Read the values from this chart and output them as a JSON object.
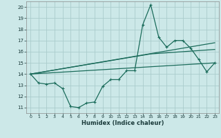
{
  "xlabel": "Humidex (Indice chaleur)",
  "background_color": "#cce8e8",
  "grid_color": "#aacccc",
  "line_color": "#1a6b5a",
  "xlim": [
    -0.5,
    23.5
  ],
  "ylim": [
    10.5,
    20.5
  ],
  "xticks": [
    0,
    1,
    2,
    3,
    4,
    5,
    6,
    7,
    8,
    9,
    10,
    11,
    12,
    13,
    14,
    15,
    16,
    17,
    18,
    19,
    20,
    21,
    22,
    23
  ],
  "yticks": [
    11,
    12,
    13,
    14,
    15,
    16,
    17,
    18,
    19,
    20
  ],
  "line1_x": [
    0,
    1,
    2,
    3,
    4,
    5,
    6,
    7,
    8,
    9,
    10,
    11,
    12,
    13,
    14,
    15,
    16,
    17,
    18,
    19,
    20,
    21,
    22,
    23
  ],
  "line1_y": [
    14.0,
    13.2,
    13.1,
    13.2,
    12.7,
    11.1,
    11.0,
    11.4,
    11.5,
    12.9,
    13.5,
    13.5,
    14.3,
    14.3,
    18.4,
    20.2,
    17.3,
    16.4,
    17.0,
    17.0,
    16.3,
    15.3,
    14.2,
    15.0
  ],
  "line2_x": [
    0,
    23
  ],
  "line2_y": [
    14.0,
    16.8
  ],
  "line3_x": [
    0,
    15,
    23
  ],
  "line3_y": [
    14.0,
    15.8,
    16.2
  ],
  "line4_x": [
    0,
    23
  ],
  "line4_y": [
    14.0,
    15.0
  ]
}
